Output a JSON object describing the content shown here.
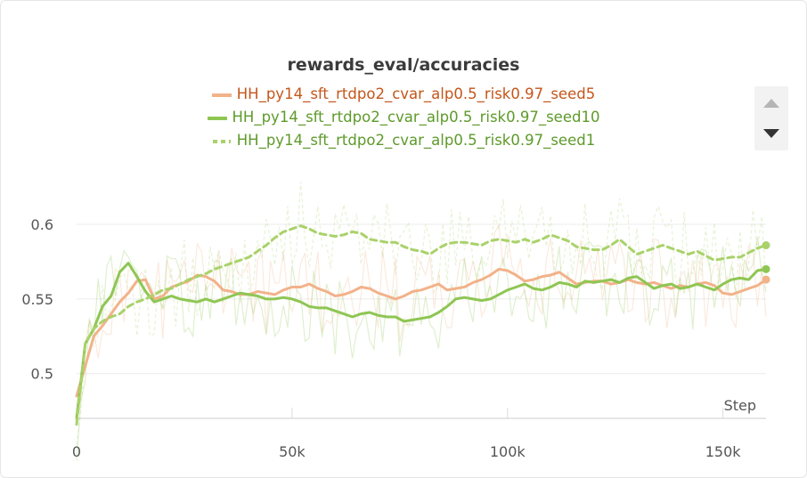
{
  "chart_data": {
    "type": "line",
    "title": "rewards_eval/accuracies",
    "xlabel": "Step",
    "ylabel": "",
    "xlim": [
      0,
      160000
    ],
    "ylim": [
      0.47,
      0.64
    ],
    "xticks": [
      0,
      50000,
      100000,
      150000
    ],
    "xtick_labels": [
      "0",
      "50k",
      "100k",
      "150k"
    ],
    "yticks": [
      0.5,
      0.55,
      0.6
    ],
    "ytick_labels": [
      "0.5",
      "0.55",
      "0.6"
    ],
    "legend_placement": "top-center",
    "grid": "horizontal",
    "series": [
      {
        "name": "HH_py14_sft_rtdpo2_cvar_alp0.5_risk0.97_seed5",
        "color": "#f2b28a",
        "label_color": "#c4561a",
        "dash": "solid",
        "x": [
          0,
          2000,
          4000,
          6000,
          8000,
          10000,
          12000,
          14000,
          16000,
          18000,
          20000,
          22000,
          24000,
          26000,
          28000,
          30000,
          32000,
          34000,
          36000,
          38000,
          40000,
          42000,
          44000,
          46000,
          48000,
          50000,
          52000,
          54000,
          56000,
          58000,
          60000,
          62000,
          64000,
          66000,
          68000,
          70000,
          72000,
          74000,
          76000,
          78000,
          80000,
          82000,
          84000,
          86000,
          88000,
          90000,
          92000,
          94000,
          96000,
          98000,
          100000,
          102000,
          104000,
          106000,
          108000,
          110000,
          112000,
          114000,
          116000,
          118000,
          120000,
          122000,
          124000,
          126000,
          128000,
          130000,
          132000,
          134000,
          136000,
          138000,
          140000,
          142000,
          144000,
          146000,
          148000,
          150000,
          152000,
          154000,
          156000,
          158000,
          160000
        ],
        "values": [
          0.485,
          0.505,
          0.525,
          0.532,
          0.54,
          0.548,
          0.554,
          0.562,
          0.563,
          0.55,
          0.552,
          0.558,
          0.56,
          0.562,
          0.566,
          0.565,
          0.562,
          0.556,
          0.555,
          0.553,
          0.553,
          0.555,
          0.554,
          0.553,
          0.556,
          0.558,
          0.558,
          0.56,
          0.557,
          0.555,
          0.552,
          0.553,
          0.555,
          0.558,
          0.557,
          0.554,
          0.552,
          0.55,
          0.552,
          0.555,
          0.556,
          0.558,
          0.56,
          0.556,
          0.557,
          0.558,
          0.561,
          0.563,
          0.566,
          0.57,
          0.569,
          0.566,
          0.562,
          0.563,
          0.565,
          0.566,
          0.568,
          0.564,
          0.56,
          0.561,
          0.562,
          0.562,
          0.56,
          0.561,
          0.563,
          0.561,
          0.56,
          0.561,
          0.559,
          0.557,
          0.559,
          0.558,
          0.56,
          0.561,
          0.559,
          0.554,
          0.553,
          0.555,
          0.557,
          0.559,
          0.563
        ]
      },
      {
        "name": "HH_py14_sft_rtdpo2_cvar_alp0.5_risk0.97_seed10",
        "color": "#8ec653",
        "label_color": "#5e9a2a",
        "dash": "solid",
        "x": [
          0,
          2000,
          4000,
          6000,
          8000,
          10000,
          12000,
          14000,
          16000,
          18000,
          20000,
          22000,
          24000,
          26000,
          28000,
          30000,
          32000,
          34000,
          36000,
          38000,
          40000,
          42000,
          44000,
          46000,
          48000,
          50000,
          52000,
          54000,
          56000,
          58000,
          60000,
          62000,
          64000,
          66000,
          68000,
          70000,
          72000,
          74000,
          76000,
          78000,
          80000,
          82000,
          84000,
          86000,
          88000,
          90000,
          92000,
          94000,
          96000,
          98000,
          100000,
          102000,
          104000,
          106000,
          108000,
          110000,
          112000,
          114000,
          116000,
          118000,
          120000,
          122000,
          124000,
          126000,
          128000,
          130000,
          132000,
          134000,
          136000,
          138000,
          140000,
          142000,
          144000,
          146000,
          148000,
          150000,
          152000,
          154000,
          156000,
          158000,
          160000
        ],
        "values": [
          0.47,
          0.52,
          0.53,
          0.545,
          0.552,
          0.568,
          0.574,
          0.565,
          0.555,
          0.548,
          0.55,
          0.552,
          0.55,
          0.549,
          0.548,
          0.55,
          0.548,
          0.55,
          0.552,
          0.554,
          0.553,
          0.552,
          0.55,
          0.55,
          0.551,
          0.55,
          0.548,
          0.545,
          0.544,
          0.544,
          0.542,
          0.54,
          0.538,
          0.54,
          0.541,
          0.539,
          0.538,
          0.538,
          0.535,
          0.536,
          0.537,
          0.538,
          0.541,
          0.545,
          0.55,
          0.551,
          0.55,
          0.549,
          0.55,
          0.553,
          0.556,
          0.558,
          0.56,
          0.557,
          0.556,
          0.558,
          0.561,
          0.56,
          0.558,
          0.562,
          0.561,
          0.562,
          0.563,
          0.561,
          0.564,
          0.565,
          0.561,
          0.557,
          0.559,
          0.56,
          0.557,
          0.558,
          0.56,
          0.558,
          0.556,
          0.56,
          0.563,
          0.564,
          0.563,
          0.569,
          0.57
        ]
      },
      {
        "name": "HH_py14_sft_rtdpo2_cvar_alp0.5_risk0.97_seed1",
        "color": "#a9d26a",
        "label_color": "#5e9a2a",
        "dash": "dashed",
        "x": [
          0,
          2000,
          4000,
          6000,
          8000,
          10000,
          12000,
          14000,
          16000,
          18000,
          20000,
          22000,
          24000,
          26000,
          28000,
          30000,
          32000,
          34000,
          36000,
          38000,
          40000,
          42000,
          44000,
          46000,
          48000,
          50000,
          52000,
          54000,
          56000,
          58000,
          60000,
          62000,
          64000,
          66000,
          68000,
          70000,
          72000,
          74000,
          76000,
          78000,
          80000,
          82000,
          84000,
          86000,
          88000,
          90000,
          92000,
          94000,
          96000,
          98000,
          100000,
          102000,
          104000,
          106000,
          108000,
          110000,
          112000,
          114000,
          116000,
          118000,
          120000,
          122000,
          124000,
          126000,
          128000,
          130000,
          132000,
          134000,
          136000,
          138000,
          140000,
          142000,
          144000,
          146000,
          148000,
          150000,
          152000,
          154000,
          156000,
          158000,
          160000
        ],
        "values": [
          0.466,
          0.52,
          0.53,
          0.535,
          0.538,
          0.54,
          0.545,
          0.548,
          0.55,
          0.553,
          0.556,
          0.557,
          0.56,
          0.563,
          0.565,
          0.567,
          0.57,
          0.572,
          0.574,
          0.576,
          0.578,
          0.582,
          0.586,
          0.591,
          0.595,
          0.597,
          0.599,
          0.597,
          0.594,
          0.593,
          0.592,
          0.593,
          0.595,
          0.594,
          0.59,
          0.589,
          0.588,
          0.588,
          0.585,
          0.583,
          0.582,
          0.58,
          0.584,
          0.587,
          0.588,
          0.588,
          0.587,
          0.586,
          0.589,
          0.59,
          0.589,
          0.588,
          0.59,
          0.588,
          0.59,
          0.593,
          0.591,
          0.589,
          0.585,
          0.584,
          0.583,
          0.583,
          0.586,
          0.59,
          0.585,
          0.58,
          0.582,
          0.584,
          0.586,
          0.584,
          0.582,
          0.58,
          0.582,
          0.579,
          0.576,
          0.577,
          0.578,
          0.578,
          0.581,
          0.584,
          0.586
        ]
      }
    ]
  }
}
